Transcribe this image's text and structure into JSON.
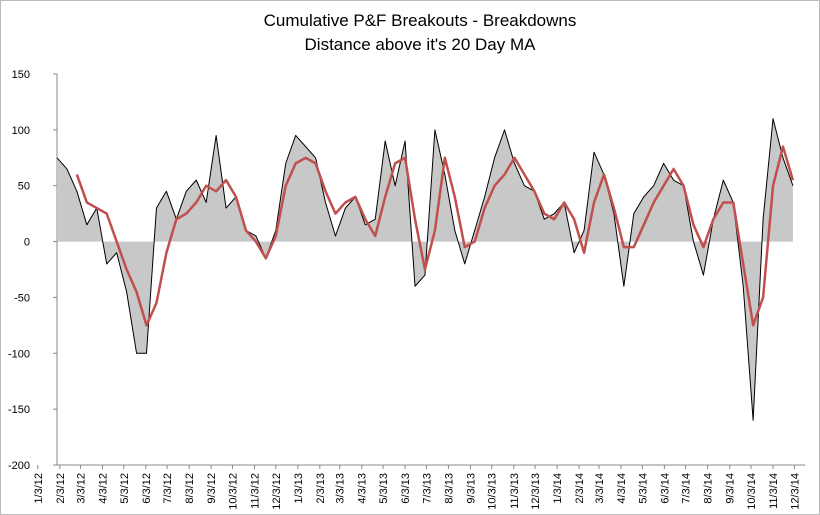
{
  "chart_data": {
    "type": "area-line",
    "title": [
      "Cumulative P&F Breakouts - Breakdowns",
      "Distance above it's 20 Day MA"
    ],
    "x": [
      "2012-01-30",
      "2012-02-13",
      "2012-02-27",
      "2012-03-12",
      "2012-03-26",
      "2012-04-09",
      "2012-04-23",
      "2012-05-07",
      "2012-05-21",
      "2012-06-04",
      "2012-06-18",
      "2012-07-02",
      "2012-07-16",
      "2012-07-30",
      "2012-08-13",
      "2012-08-27",
      "2012-09-10",
      "2012-09-24",
      "2012-10-08",
      "2012-10-22",
      "2012-11-05",
      "2012-11-19",
      "2012-12-03",
      "2012-12-17",
      "2012-12-31",
      "2013-01-14",
      "2013-01-28",
      "2013-02-11",
      "2013-02-25",
      "2013-03-11",
      "2013-03-25",
      "2013-04-08",
      "2013-04-22",
      "2013-05-06",
      "2013-05-20",
      "2013-06-03",
      "2013-06-17",
      "2013-07-01",
      "2013-07-15",
      "2013-07-29",
      "2013-08-12",
      "2013-08-26",
      "2013-09-09",
      "2013-09-23",
      "2013-10-07",
      "2013-10-21",
      "2013-11-04",
      "2013-11-18",
      "2013-12-02",
      "2013-12-16",
      "2013-12-30",
      "2014-01-13",
      "2014-01-27",
      "2014-02-10",
      "2014-02-24",
      "2014-03-10",
      "2014-03-24",
      "2014-04-07",
      "2014-04-21",
      "2014-05-05",
      "2014-05-19",
      "2014-06-02",
      "2014-06-16",
      "2014-06-30",
      "2014-07-14",
      "2014-07-28",
      "2014-08-11",
      "2014-08-25",
      "2014-09-08",
      "2014-09-22",
      "2014-10-06",
      "2014-10-20",
      "2014-11-03",
      "2014-11-17",
      "2014-12-01"
    ],
    "series": [
      {
        "color": "#000000",
        "fill": "#c8c8c8",
        "values": [
          75,
          65,
          45,
          15,
          30,
          -20,
          -10,
          -45,
          -100,
          -100,
          30,
          45,
          20,
          45,
          55,
          35,
          95,
          30,
          40,
          10,
          5,
          -15,
          10,
          70,
          95,
          85,
          75,
          35,
          5,
          30,
          40,
          15,
          20,
          90,
          50,
          90,
          -40,
          -30,
          100,
          60,
          10,
          -20,
          10,
          40,
          75,
          100,
          70,
          50,
          45,
          20,
          25,
          35,
          -10,
          10,
          80,
          60,
          25,
          -40,
          25,
          40,
          50,
          70,
          55,
          50,
          0,
          -30,
          20,
          55,
          35,
          -40,
          -160,
          20,
          110,
          75,
          50
        ]
      },
      {
        "color": "#c0504d",
        "values": [
          null,
          null,
          60,
          35,
          30,
          25,
          0,
          -25,
          -45,
          -75,
          -55,
          -10,
          20,
          25,
          35,
          50,
          45,
          55,
          40,
          10,
          0,
          -15,
          5,
          50,
          70,
          75,
          70,
          45,
          25,
          35,
          40,
          20,
          5,
          40,
          70,
          75,
          20,
          -25,
          10,
          75,
          40,
          -5,
          0,
          30,
          50,
          60,
          75,
          60,
          45,
          25,
          20,
          35,
          20,
          -10,
          35,
          60,
          30,
          -5,
          -5,
          15,
          35,
          50,
          65,
          50,
          15,
          -5,
          20,
          35,
          35,
          -20,
          -75,
          -50,
          50,
          85,
          55
        ]
      }
    ],
    "xlim": [
      "2012-01-30",
      "2014-12-18"
    ],
    "xticks": [
      {
        "value": "2012-01-03",
        "label": "1/3/12"
      },
      {
        "value": "2012-02-03",
        "label": "2/3/12"
      },
      {
        "value": "2012-03-03",
        "label": "3/3/12"
      },
      {
        "value": "2012-04-03",
        "label": "4/3/12"
      },
      {
        "value": "2012-05-03",
        "label": "5/3/12"
      },
      {
        "value": "2012-06-03",
        "label": "6/3/12"
      },
      {
        "value": "2012-07-03",
        "label": "7/3/12"
      },
      {
        "value": "2012-08-03",
        "label": "8/3/12"
      },
      {
        "value": "2012-09-03",
        "label": "9/3/12"
      },
      {
        "value": "2012-10-03",
        "label": "10/3/12"
      },
      {
        "value": "2012-11-03",
        "label": "11/3/12"
      },
      {
        "value": "2012-12-03",
        "label": "12/3/12"
      },
      {
        "value": "2013-01-03",
        "label": "1/3/13"
      },
      {
        "value": "2013-02-03",
        "label": "2/3/13"
      },
      {
        "value": "2013-03-03",
        "label": "3/3/13"
      },
      {
        "value": "2013-04-03",
        "label": "4/3/13"
      },
      {
        "value": "2013-05-03",
        "label": "5/3/13"
      },
      {
        "value": "2013-06-03",
        "label": "6/3/13"
      },
      {
        "value": "2013-07-03",
        "label": "7/3/13"
      },
      {
        "value": "2013-08-03",
        "label": "8/3/13"
      },
      {
        "value": "2013-09-03",
        "label": "9/3/13"
      },
      {
        "value": "2013-10-03",
        "label": "10/3/13"
      },
      {
        "value": "2013-11-03",
        "label": "11/3/13"
      },
      {
        "value": "2013-12-03",
        "label": "12/3/13"
      },
      {
        "value": "2014-01-03",
        "label": "1/3/14"
      },
      {
        "value": "2014-02-03",
        "label": "2/3/14"
      },
      {
        "value": "2014-03-03",
        "label": "3/3/14"
      },
      {
        "value": "2014-04-03",
        "label": "4/3/14"
      },
      {
        "value": "2014-05-03",
        "label": "5/3/14"
      },
      {
        "value": "2014-06-03",
        "label": "6/3/14"
      },
      {
        "value": "2014-07-03",
        "label": "7/3/14"
      },
      {
        "value": "2014-08-03",
        "label": "8/3/14"
      },
      {
        "value": "2014-09-03",
        "label": "9/3/14"
      },
      {
        "value": "2014-10-03",
        "label": "10/3/14"
      },
      {
        "value": "2014-11-03",
        "label": "11/3/14"
      },
      {
        "value": "2014-12-03",
        "label": "12/3/14"
      }
    ],
    "ylim": [
      -200,
      150
    ],
    "yticks": [
      -200,
      -150,
      -100,
      -50,
      0,
      50,
      100,
      150
    ]
  }
}
